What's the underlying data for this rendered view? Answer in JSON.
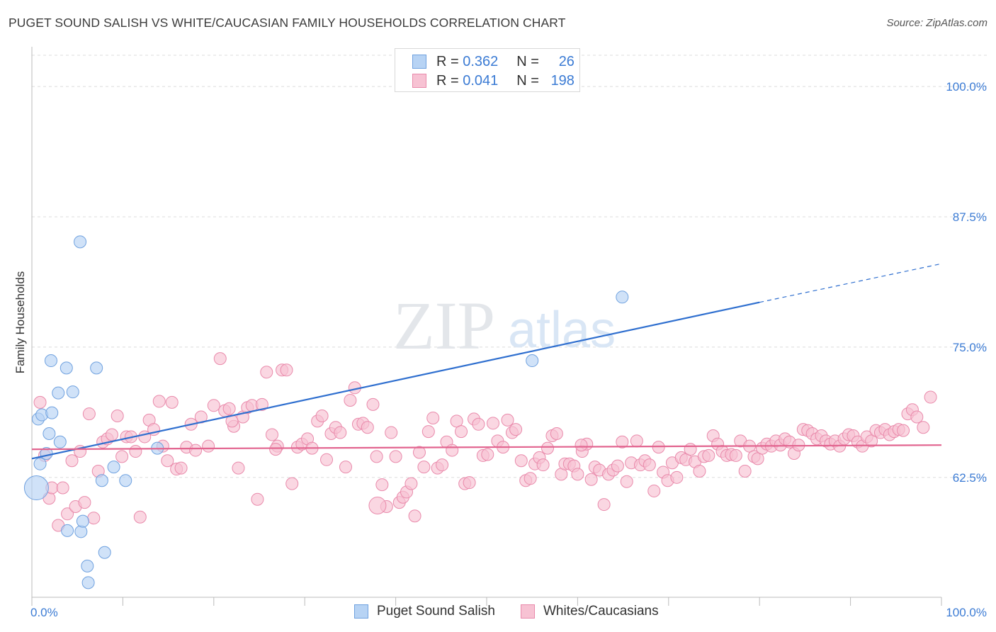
{
  "title": "PUGET SOUND SALISH VS WHITE/CAUCASIAN FAMILY HOUSEHOLDS CORRELATION CHART",
  "source": "Source: ZipAtlas.com",
  "watermark": {
    "zip": "ZIP",
    "atlas": "atlas"
  },
  "legend": {
    "series1": {
      "r_label": "R =",
      "r_value": "0.362",
      "n_label": "N =",
      "n_value": "26"
    },
    "series2": {
      "r_label": "R =",
      "r_value": "0.041",
      "n_label": "N =",
      "n_value": "198"
    }
  },
  "bottom_legend": {
    "series1": "Puget Sound Salish",
    "series2": "Whites/Caucasians"
  },
  "colors": {
    "blue_fill": "#b7d3f4",
    "blue_stroke": "#6fa1df",
    "blue_line": "#2f6fcf",
    "pink_fill": "#f7c2d3",
    "pink_stroke": "#e98aab",
    "pink_line": "#e2648f",
    "axis_text": "#3b7bd4",
    "grid": "#dcdcdc"
  },
  "chart_data": {
    "type": "scatter",
    "title": "PUGET SOUND SALISH VS WHITE/CAUCASIAN FAMILY HOUSEHOLDS CORRELATION CHART",
    "xlabel": "",
    "ylabel": "Family Households",
    "xlim": [
      0,
      100
    ],
    "ylim": [
      51,
      103
    ],
    "x_tick_labels": [
      "0.0%",
      "100.0%"
    ],
    "y_ticks": [
      62.5,
      75.0,
      87.5,
      100.0
    ],
    "y_tick_labels": [
      "62.5%",
      "75.0%",
      "87.5%",
      "100.0%"
    ],
    "series": [
      {
        "name": "Puget Sound Salish",
        "r": 0.362,
        "n": 26,
        "trend": {
          "x0": 0,
          "y0": 64.3,
          "x1": 80,
          "y1": 79.3,
          "dash_to_x": 100,
          "dash_to_y": 83.0
        },
        "points": [
          [
            0.5,
            61.5,
            "big"
          ],
          [
            0.7,
            68.1
          ],
          [
            0.9,
            63.8
          ],
          [
            1.1,
            68.5
          ],
          [
            1.6,
            64.8
          ],
          [
            1.9,
            66.7
          ],
          [
            2.1,
            73.7
          ],
          [
            2.2,
            68.7
          ],
          [
            2.9,
            70.6
          ],
          [
            3.1,
            65.9
          ],
          [
            3.8,
            73.0
          ],
          [
            3.9,
            57.4
          ],
          [
            4.5,
            70.7
          ],
          [
            5.4,
            57.3
          ],
          [
            5.6,
            58.3
          ],
          [
            5.3,
            85.1
          ],
          [
            6.1,
            54.0
          ],
          [
            6.2,
            52.4
          ],
          [
            7.1,
            73.0
          ],
          [
            7.7,
            62.2
          ],
          [
            8.0,
            55.3
          ],
          [
            9.0,
            63.5
          ],
          [
            10.3,
            62.2
          ],
          [
            13.8,
            65.3
          ],
          [
            55.0,
            73.7
          ],
          [
            64.9,
            79.8
          ]
        ]
      },
      {
        "name": "Whites/Caucasians",
        "r": 0.041,
        "n": 198,
        "trend": {
          "x0": 0,
          "y0": 65.2,
          "x1": 100,
          "y1": 65.6
        },
        "points": [
          [
            0.9,
            69.7
          ],
          [
            1.4,
            64.6
          ],
          [
            1.9,
            60.5
          ],
          [
            2.2,
            61.5
          ],
          [
            2.9,
            57.9
          ],
          [
            3.4,
            61.5
          ],
          [
            3.9,
            59.0
          ],
          [
            4.4,
            64.1
          ],
          [
            4.8,
            59.7
          ],
          [
            5.3,
            65.0
          ],
          [
            5.8,
            60.1
          ],
          [
            6.3,
            68.6
          ],
          [
            6.8,
            58.6
          ],
          [
            7.3,
            63.1
          ],
          [
            7.8,
            65.9
          ],
          [
            8.3,
            66.2
          ],
          [
            8.8,
            66.6
          ],
          [
            9.4,
            68.4
          ],
          [
            9.9,
            64.5
          ],
          [
            10.4,
            66.4
          ],
          [
            10.9,
            66.4
          ],
          [
            11.4,
            65.0
          ],
          [
            11.9,
            58.7
          ],
          [
            12.4,
            66.4
          ],
          [
            12.9,
            68.0
          ],
          [
            13.4,
            67.1
          ],
          [
            14.0,
            69.8
          ],
          [
            14.4,
            65.5
          ],
          [
            14.9,
            64.1
          ],
          [
            15.4,
            69.7
          ],
          [
            15.9,
            63.3
          ],
          [
            16.4,
            63.4
          ],
          [
            17.0,
            65.4
          ],
          [
            17.5,
            67.6
          ],
          [
            18.0,
            65.1
          ],
          [
            18.6,
            68.3
          ],
          [
            19.4,
            65.5
          ],
          [
            20.0,
            69.4
          ],
          [
            20.7,
            73.9
          ],
          [
            21.2,
            68.9
          ],
          [
            21.7,
            69.1
          ],
          [
            22.2,
            67.4
          ],
          [
            22.7,
            63.4
          ],
          [
            23.2,
            68.3
          ],
          [
            23.7,
            69.2
          ],
          [
            24.2,
            69.4
          ],
          [
            24.8,
            60.4
          ],
          [
            25.3,
            69.5
          ],
          [
            25.8,
            72.6
          ],
          [
            26.4,
            66.6
          ],
          [
            27.0,
            65.5
          ],
          [
            27.5,
            72.8
          ],
          [
            28.0,
            72.8
          ],
          [
            28.6,
            61.9
          ],
          [
            29.2,
            65.4
          ],
          [
            29.7,
            65.7
          ],
          [
            30.3,
            66.2
          ],
          [
            30.8,
            65.3
          ],
          [
            31.4,
            67.9
          ],
          [
            31.9,
            68.4
          ],
          [
            32.4,
            64.2
          ],
          [
            32.9,
            66.7
          ],
          [
            33.4,
            67.3
          ],
          [
            33.9,
            66.8
          ],
          [
            34.5,
            63.5
          ],
          [
            35.0,
            69.9
          ],
          [
            35.5,
            71.1
          ],
          [
            35.9,
            67.6
          ],
          [
            36.4,
            67.7
          ],
          [
            36.9,
            67.3
          ],
          [
            37.5,
            69.5
          ],
          [
            37.9,
            64.5
          ],
          [
            38.5,
            61.8
          ],
          [
            39.0,
            59.7
          ],
          [
            39.5,
            66.8
          ],
          [
            40.0,
            64.5
          ],
          [
            40.4,
            60.1
          ],
          [
            40.8,
            60.6
          ],
          [
            41.2,
            61.1
          ],
          [
            41.7,
            61.9
          ],
          [
            42.1,
            58.8
          ],
          [
            42.6,
            64.9
          ],
          [
            43.1,
            63.5
          ],
          [
            43.6,
            66.9
          ],
          [
            44.1,
            68.2
          ],
          [
            44.6,
            63.4
          ],
          [
            45.1,
            63.7
          ],
          [
            45.6,
            65.9
          ],
          [
            46.2,
            65.1
          ],
          [
            46.7,
            67.9
          ],
          [
            47.2,
            66.9
          ],
          [
            47.6,
            61.9
          ],
          [
            48.1,
            62.0
          ],
          [
            48.6,
            68.1
          ],
          [
            49.1,
            67.6
          ],
          [
            49.6,
            64.6
          ],
          [
            50.1,
            64.7
          ],
          [
            50.7,
            67.7
          ],
          [
            51.2,
            66.0
          ],
          [
            51.8,
            65.4
          ],
          [
            52.3,
            68.0
          ],
          [
            52.8,
            66.8
          ],
          [
            53.2,
            67.1
          ],
          [
            53.8,
            64.1
          ],
          [
            54.3,
            62.2
          ],
          [
            54.8,
            62.4
          ],
          [
            55.3,
            63.8
          ],
          [
            55.8,
            64.4
          ],
          [
            56.2,
            63.7
          ],
          [
            56.7,
            65.3
          ],
          [
            57.2,
            66.5
          ],
          [
            57.7,
            66.7
          ],
          [
            58.2,
            62.8
          ],
          [
            58.6,
            63.8
          ],
          [
            59.1,
            63.8
          ],
          [
            59.6,
            63.6
          ],
          [
            60.0,
            62.8
          ],
          [
            60.5,
            65.0
          ],
          [
            61.0,
            65.7
          ],
          [
            61.5,
            62.3
          ],
          [
            61.9,
            63.5
          ],
          [
            62.4,
            63.2
          ],
          [
            62.9,
            59.9
          ],
          [
            63.4,
            62.8
          ],
          [
            63.9,
            63.2
          ],
          [
            64.4,
            63.6
          ],
          [
            64.9,
            65.9
          ],
          [
            65.4,
            62.1
          ],
          [
            65.9,
            63.9
          ],
          [
            66.5,
            66.0
          ],
          [
            66.9,
            63.7
          ],
          [
            67.4,
            64.1
          ],
          [
            67.9,
            63.7
          ],
          [
            68.4,
            61.2
          ],
          [
            68.9,
            65.4
          ],
          [
            69.4,
            63.0
          ],
          [
            69.9,
            62.2
          ],
          [
            70.4,
            63.9
          ],
          [
            70.9,
            62.5
          ],
          [
            71.4,
            64.4
          ],
          [
            71.9,
            64.2
          ],
          [
            72.4,
            65.2
          ],
          [
            72.9,
            64.0
          ],
          [
            73.4,
            63.1
          ],
          [
            73.9,
            64.5
          ],
          [
            74.4,
            64.6
          ],
          [
            74.9,
            66.5
          ],
          [
            75.4,
            65.7
          ],
          [
            75.9,
            65.0
          ],
          [
            76.4,
            64.6
          ],
          [
            76.9,
            64.7
          ],
          [
            77.4,
            64.6
          ],
          [
            77.9,
            66.0
          ],
          [
            78.4,
            63.1
          ],
          [
            78.9,
            65.5
          ],
          [
            79.4,
            64.5
          ],
          [
            79.8,
            64.3
          ],
          [
            80.3,
            65.3
          ],
          [
            80.8,
            65.7
          ],
          [
            81.3,
            65.5
          ],
          [
            81.8,
            66.0
          ],
          [
            82.3,
            65.6
          ],
          [
            82.8,
            66.2
          ],
          [
            83.3,
            65.9
          ],
          [
            83.8,
            64.8
          ],
          [
            84.3,
            65.6
          ],
          [
            84.8,
            67.1
          ],
          [
            85.3,
            67.0
          ],
          [
            85.8,
            66.7
          ],
          [
            86.3,
            66.2
          ],
          [
            86.8,
            66.5
          ],
          [
            87.3,
            66.0
          ],
          [
            87.8,
            65.7
          ],
          [
            88.3,
            66.0
          ],
          [
            88.8,
            65.5
          ],
          [
            89.3,
            66.2
          ],
          [
            89.8,
            66.6
          ],
          [
            90.3,
            66.5
          ],
          [
            90.8,
            65.9
          ],
          [
            91.3,
            65.5
          ],
          [
            91.8,
            66.4
          ],
          [
            92.3,
            66.0
          ],
          [
            92.8,
            67.0
          ],
          [
            93.3,
            66.8
          ],
          [
            93.8,
            67.1
          ],
          [
            94.3,
            66.6
          ],
          [
            94.8,
            66.9
          ],
          [
            95.3,
            67.1
          ],
          [
            95.8,
            67.0
          ],
          [
            96.3,
            68.6
          ],
          [
            96.8,
            69.0
          ],
          [
            97.3,
            68.3
          ],
          [
            98.0,
            67.3
          ],
          [
            98.8,
            70.2
          ],
          [
            60.4,
            65.6
          ],
          [
            22.0,
            67.9
          ],
          [
            26.8,
            65.2
          ],
          [
            38.0,
            59.8,
            "big"
          ]
        ]
      }
    ]
  }
}
